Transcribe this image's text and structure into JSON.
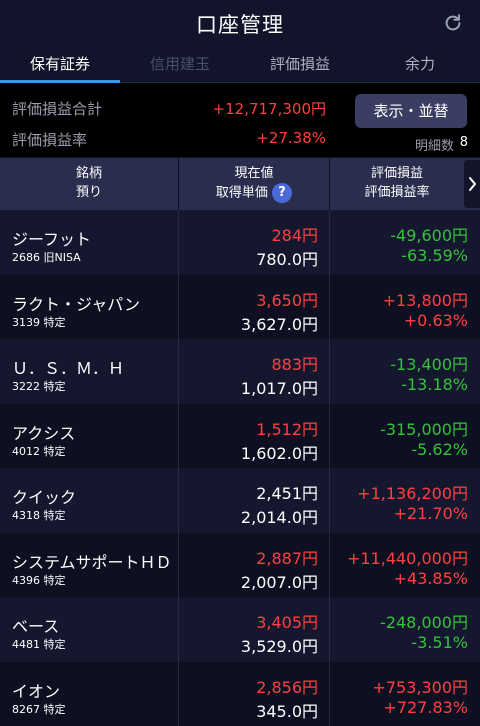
{
  "header": {
    "title": "口座管理",
    "refresh_icon": "refresh-icon"
  },
  "tabs": [
    {
      "label": "保有証券",
      "state": "active"
    },
    {
      "label": "信用建玉",
      "state": "disabled"
    },
    {
      "label": "評価損益",
      "state": "normal"
    },
    {
      "label": "余力",
      "state": "normal"
    }
  ],
  "summary": {
    "total_label": "評価損益合計",
    "total_value": "+12,717,300円",
    "rate_label": "評価損益率",
    "rate_value": "+27.38%",
    "display_button": "表示・並替",
    "count_label": "明細数",
    "count_value": "8"
  },
  "columns": {
    "name_line1": "銘柄",
    "name_line2": "預り",
    "price_line1": "現在値",
    "price_line2": "取得単価",
    "pl_line1": "評価損益",
    "pl_line2": "評価損益率",
    "help_glyph": "?"
  },
  "colors": {
    "gain": "#ff4040",
    "loss": "#35c23a",
    "accent": "#2f9bf0"
  },
  "holdings": [
    {
      "name": "ジーフット",
      "code": "2686 旧NISA",
      "price": "284円",
      "price_color": "red",
      "cost": "780.0円",
      "pl": "-49,600円",
      "rate": "-63.59%",
      "pl_color": "green"
    },
    {
      "name": "ラクト・ジャパン",
      "code": "3139 特定",
      "price": "3,650円",
      "price_color": "red",
      "cost": "3,627.0円",
      "pl": "+13,800円",
      "rate": "+0.63%",
      "pl_color": "red"
    },
    {
      "name": "Ｕ．Ｓ．Ｍ．Ｈ",
      "code": "3222 特定",
      "price": "883円",
      "price_color": "red",
      "cost": "1,017.0円",
      "pl": "-13,400円",
      "rate": "-13.18%",
      "pl_color": "green"
    },
    {
      "name": "アクシス",
      "code": "4012 特定",
      "price": "1,512円",
      "price_color": "red",
      "cost": "1,602.0円",
      "pl": "-315,000円",
      "rate": "-5.62%",
      "pl_color": "green"
    },
    {
      "name": "クイック",
      "code": "4318 特定",
      "price": "2,451円",
      "price_color": "white",
      "cost": "2,014.0円",
      "pl": "+1,136,200円",
      "rate": "+21.70%",
      "pl_color": "red"
    },
    {
      "name": "システムサポートＨＤ",
      "code": "4396 特定",
      "price": "2,887円",
      "price_color": "red",
      "cost": "2,007.0円",
      "pl": "+11,440,000円",
      "rate": "+43.85%",
      "pl_color": "red"
    },
    {
      "name": "ベース",
      "code": "4481 特定",
      "price": "3,405円",
      "price_color": "red",
      "cost": "3,529.0円",
      "pl": "-248,000円",
      "rate": "-3.51%",
      "pl_color": "green"
    },
    {
      "name": "イオン",
      "code": "8267 特定",
      "price": "2,856円",
      "price_color": "red",
      "cost": "345.0円",
      "pl": "+753,300円",
      "rate": "+727.83%",
      "pl_color": "red"
    }
  ]
}
